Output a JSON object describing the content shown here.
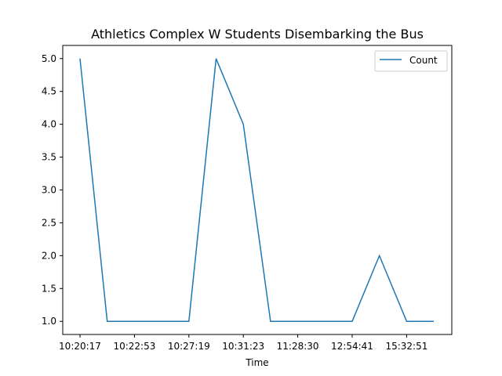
{
  "chart_data": {
    "type": "line",
    "title": "Athletics Complex W Students Disembarking the Bus",
    "xlabel": "Time",
    "ylabel": "",
    "x_tick_labels": [
      "10:20:17",
      "10:22:53",
      "10:27:19",
      "10:31:23",
      "11:28:30",
      "12:54:41",
      "15:32:51"
    ],
    "y_ticks": [
      1.0,
      1.5,
      2.0,
      2.5,
      3.0,
      3.5,
      4.0,
      4.5,
      5.0
    ],
    "y_tick_labels": [
      "1.0",
      "1.5",
      "2.0",
      "2.5",
      "3.0",
      "3.5",
      "4.0",
      "4.5",
      "5.0"
    ],
    "ylim": [
      0.8,
      5.2
    ],
    "grid": false,
    "legend": "top-right",
    "series": [
      {
        "name": "Count",
        "color": "#1f77b4",
        "values": [
          5,
          1,
          1,
          1,
          1,
          5,
          4,
          1,
          1,
          1,
          1,
          2,
          1,
          1
        ]
      }
    ]
  }
}
